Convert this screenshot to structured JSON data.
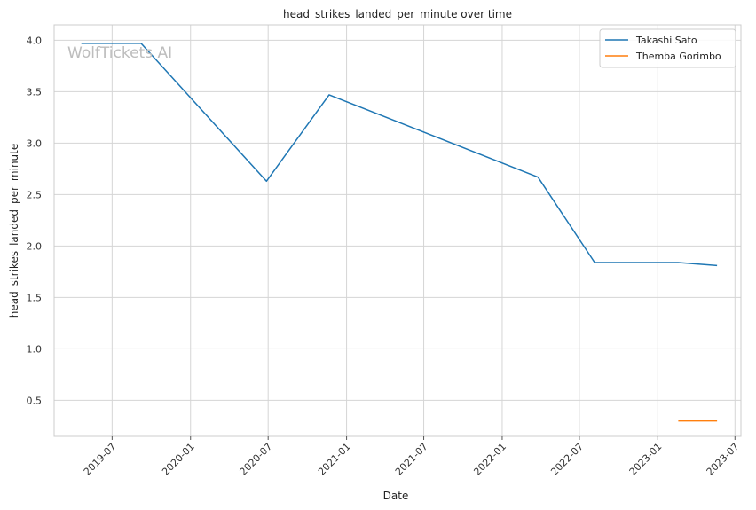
{
  "watermark": "WolfTickets AI",
  "chart_data": {
    "type": "line",
    "title": "head_strikes_landed_per_minute over time",
    "xlabel": "Date",
    "ylabel": "head_strikes_landed_per_minute",
    "xlim": [
      "2019-02-15",
      "2023-07-15"
    ],
    "ylim": [
      0.15,
      4.15
    ],
    "x_ticks": [
      "2019-07-01",
      "2020-01-01",
      "2020-07-01",
      "2021-01-01",
      "2021-07-01",
      "2022-01-01",
      "2022-07-01",
      "2023-01-01",
      "2023-07-01"
    ],
    "x_tick_labels": [
      "2019-07",
      "2020-01",
      "2020-07",
      "2021-01",
      "2021-07",
      "2022-01",
      "2022-07",
      "2023-01",
      "2023-07"
    ],
    "y_ticks": [
      0.5,
      1.0,
      1.5,
      2.0,
      2.5,
      3.0,
      3.5,
      4.0
    ],
    "y_tick_labels": [
      "0.5",
      "1.0",
      "1.5",
      "2.0",
      "2.5",
      "3.0",
      "3.5",
      "4.0"
    ],
    "grid": true,
    "legend_position": "top-right",
    "series": [
      {
        "name": "Takashi Sato",
        "color": "#1f77b4",
        "points": [
          {
            "x": "2019-04-20",
            "y": 3.97
          },
          {
            "x": "2019-09-07",
            "y": 3.97
          },
          {
            "x": "2020-06-27",
            "y": 2.63
          },
          {
            "x": "2020-11-21",
            "y": 3.47
          },
          {
            "x": "2022-03-26",
            "y": 2.67
          },
          {
            "x": "2022-08-06",
            "y": 1.84
          },
          {
            "x": "2023-02-18",
            "y": 1.84
          },
          {
            "x": "2023-05-20",
            "y": 1.81
          }
        ]
      },
      {
        "name": "Themba Gorimbo",
        "color": "#ff7f0e",
        "points": [
          {
            "x": "2023-02-18",
            "y": 0.3
          },
          {
            "x": "2023-05-20",
            "y": 0.3
          }
        ]
      }
    ]
  }
}
